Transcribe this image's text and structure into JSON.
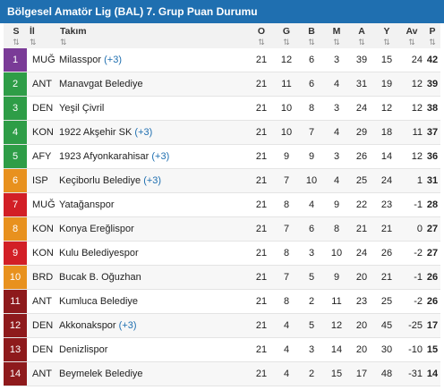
{
  "header": {
    "title": "Bölgesel Amatör Lig (BAL) 7. Grup Puan Durumu"
  },
  "columns": {
    "rank": "S",
    "city": "İl",
    "team": "Takım",
    "played": "O",
    "won": "G",
    "draw": "B",
    "lost": "M",
    "goals_for": "A",
    "goals_against": "Y",
    "avg": "Av",
    "points": "P",
    "sort_glyph": "⇅"
  },
  "colors": {
    "title_bar": "#1f6fb0",
    "rank_purple": "#7a3b97",
    "rank_green": "#2e9d47",
    "rank_orange": "#e8911e",
    "rank_red": "#d21f26",
    "rank_darkred": "#8e1a1c",
    "link": "#1f6fb0"
  },
  "rows": [
    {
      "rank": "1",
      "city": "MUĞ",
      "team": "Milasspor",
      "note": "(+3)",
      "o": "21",
      "g": "12",
      "b": "6",
      "m": "3",
      "a": "39",
      "y": "15",
      "av": "24",
      "p": "42",
      "color": "#7a3b97"
    },
    {
      "rank": "2",
      "city": "ANT",
      "team": "Manavgat Belediye",
      "note": "",
      "o": "21",
      "g": "11",
      "b": "6",
      "m": "4",
      "a": "31",
      "y": "19",
      "av": "12",
      "p": "39",
      "color": "#2e9d47"
    },
    {
      "rank": "3",
      "city": "DEN",
      "team": "Yeşil Çivril",
      "note": "",
      "o": "21",
      "g": "10",
      "b": "8",
      "m": "3",
      "a": "24",
      "y": "12",
      "av": "12",
      "p": "38",
      "color": "#2e9d47"
    },
    {
      "rank": "4",
      "city": "KON",
      "team": "1922 Akşehir SK",
      "note": "(+3)",
      "o": "21",
      "g": "10",
      "b": "7",
      "m": "4",
      "a": "29",
      "y": "18",
      "av": "11",
      "p": "37",
      "color": "#2e9d47"
    },
    {
      "rank": "5",
      "city": "AFY",
      "team": "1923 Afyonkarahisar",
      "note": "(+3)",
      "o": "21",
      "g": "9",
      "b": "9",
      "m": "3",
      "a": "26",
      "y": "14",
      "av": "12",
      "p": "36",
      "color": "#2e9d47"
    },
    {
      "rank": "6",
      "city": "ISP",
      "team": "Keçiborlu Belediye",
      "note": "(+3)",
      "o": "21",
      "g": "7",
      "b": "10",
      "m": "4",
      "a": "25",
      "y": "24",
      "av": "1",
      "p": "31",
      "color": "#e8911e"
    },
    {
      "rank": "7",
      "city": "MUĞ",
      "team": "Yatağanspor",
      "note": "",
      "o": "21",
      "g": "8",
      "b": "4",
      "m": "9",
      "a": "22",
      "y": "23",
      "av": "-1",
      "p": "28",
      "color": "#d21f26"
    },
    {
      "rank": "8",
      "city": "KON",
      "team": "Konya Ereğlispor",
      "note": "",
      "o": "21",
      "g": "7",
      "b": "6",
      "m": "8",
      "a": "21",
      "y": "21",
      "av": "0",
      "p": "27",
      "color": "#e8911e"
    },
    {
      "rank": "9",
      "city": "KON",
      "team": "Kulu Belediyespor",
      "note": "",
      "o": "21",
      "g": "8",
      "b": "3",
      "m": "10",
      "a": "24",
      "y": "26",
      "av": "-2",
      "p": "27",
      "color": "#d21f26"
    },
    {
      "rank": "10",
      "city": "BRD",
      "team": "Bucak B. Oğuzhan",
      "note": "",
      "o": "21",
      "g": "7",
      "b": "5",
      "m": "9",
      "a": "20",
      "y": "21",
      "av": "-1",
      "p": "26",
      "color": "#e8911e"
    },
    {
      "rank": "11",
      "city": "ANT",
      "team": "Kumluca Belediye",
      "note": "",
      "o": "21",
      "g": "8",
      "b": "2",
      "m": "11",
      "a": "23",
      "y": "25",
      "av": "-2",
      "p": "26",
      "color": "#8e1a1c"
    },
    {
      "rank": "12",
      "city": "DEN",
      "team": "Akkonakspor",
      "note": "(+3)",
      "o": "21",
      "g": "4",
      "b": "5",
      "m": "12",
      "a": "20",
      "y": "45",
      "av": "-25",
      "p": "17",
      "color": "#8e1a1c"
    },
    {
      "rank": "13",
      "city": "DEN",
      "team": "Denizlispor",
      "note": "",
      "o": "21",
      "g": "4",
      "b": "3",
      "m": "14",
      "a": "20",
      "y": "30",
      "av": "-10",
      "p": "15",
      "color": "#8e1a1c"
    },
    {
      "rank": "14",
      "city": "ANT",
      "team": "Beymelek Belediye",
      "note": "",
      "o": "21",
      "g": "4",
      "b": "2",
      "m": "15",
      "a": "17",
      "y": "48",
      "av": "-31",
      "p": "14",
      "color": "#8e1a1c"
    }
  ]
}
